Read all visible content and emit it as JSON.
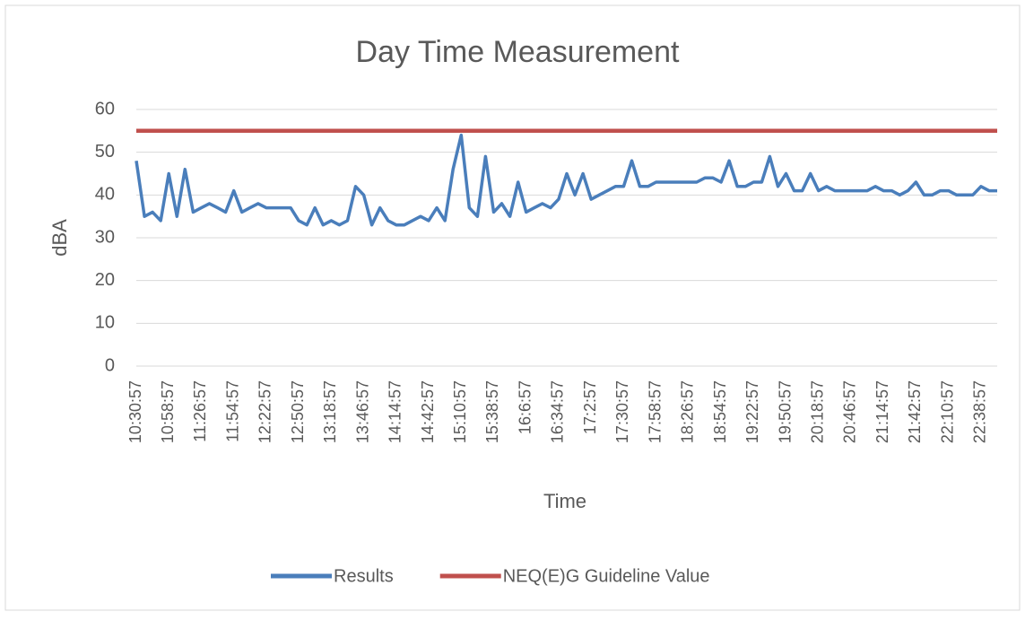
{
  "chart_data": {
    "type": "line",
    "title": "Day Time Measurement",
    "x_label": "Time",
    "y_label": "dBA",
    "categories": [
      "10:30:57",
      null,
      null,
      null,
      "10:58:57",
      null,
      null,
      null,
      "11:26:57",
      null,
      null,
      null,
      "11:54:57",
      null,
      null,
      null,
      "12:22:57",
      null,
      null,
      null,
      "12:50:57",
      null,
      null,
      null,
      "13:18:57",
      null,
      null,
      null,
      "13:46:57",
      null,
      null,
      null,
      "14:14:57",
      null,
      null,
      null,
      "14:42:57",
      null,
      null,
      null,
      "15:10:57",
      null,
      null,
      null,
      "15:38:57",
      null,
      null,
      null,
      "16:6:57",
      null,
      null,
      null,
      "16:34:57",
      null,
      null,
      null,
      "17:2:57",
      null,
      null,
      null,
      "17:30:57",
      null,
      null,
      null,
      "17:58:57",
      null,
      null,
      null,
      "18:26:57",
      null,
      null,
      null,
      "18:54:57",
      null,
      null,
      null,
      "19:22:57",
      null,
      null,
      null,
      "19:50:57",
      null,
      null,
      null,
      "20:18:57",
      null,
      null,
      null,
      "20:46:57",
      null,
      null,
      null,
      "21:14:57",
      null,
      null,
      null,
      "21:42:57",
      null,
      null,
      null,
      "22:10:57",
      null,
      null,
      null,
      "22:38:57",
      null,
      null
    ],
    "series": [
      {
        "name": "Results",
        "color": "#4a7ebb",
        "values": [
          48,
          35,
          36,
          34,
          45,
          35,
          46,
          36,
          37,
          38,
          37,
          36,
          41,
          36,
          37,
          38,
          37,
          37,
          37,
          37,
          34,
          33,
          37,
          33,
          34,
          33,
          34,
          42,
          40,
          33,
          37,
          34,
          33,
          33,
          34,
          35,
          34,
          37,
          34,
          46,
          54,
          37,
          35,
          49,
          36,
          38,
          35,
          43,
          36,
          37,
          38,
          37,
          39,
          45,
          40,
          45,
          39,
          40,
          41,
          42,
          42,
          48,
          42,
          42,
          43,
          43,
          43,
          43,
          43,
          43,
          44,
          44,
          43,
          48,
          42,
          42,
          43,
          43,
          49,
          42,
          45,
          41,
          41,
          45,
          41,
          42,
          41,
          41,
          41,
          41,
          41,
          42,
          41,
          41,
          40,
          41,
          43,
          40,
          40,
          41,
          41,
          40,
          40,
          40,
          42,
          41,
          41
        ]
      },
      {
        "name": "NEQ(E)G Guideline Value",
        "color": "#c0504d",
        "values": [
          55,
          55,
          55,
          55,
          55,
          55,
          55,
          55,
          55,
          55,
          55,
          55,
          55,
          55,
          55,
          55,
          55,
          55,
          55,
          55,
          55,
          55,
          55,
          55,
          55,
          55,
          55,
          55,
          55,
          55,
          55,
          55,
          55,
          55,
          55,
          55,
          55,
          55,
          55,
          55,
          55,
          55,
          55,
          55,
          55,
          55,
          55,
          55,
          55,
          55,
          55,
          55,
          55,
          55,
          55,
          55,
          55,
          55,
          55,
          55,
          55,
          55,
          55,
          55,
          55,
          55,
          55,
          55,
          55,
          55,
          55,
          55,
          55,
          55,
          55,
          55,
          55,
          55,
          55,
          55,
          55,
          55,
          55,
          55,
          55,
          55,
          55,
          55,
          55,
          55,
          55,
          55,
          55,
          55,
          55,
          55,
          55,
          55,
          55,
          55,
          55,
          55,
          55,
          55,
          55,
          55,
          55
        ]
      }
    ],
    "ylim": [
      0,
      60
    ],
    "yticks": [
      0,
      10,
      20,
      30,
      40,
      50,
      60
    ],
    "grid": true,
    "legend": "bottom"
  }
}
